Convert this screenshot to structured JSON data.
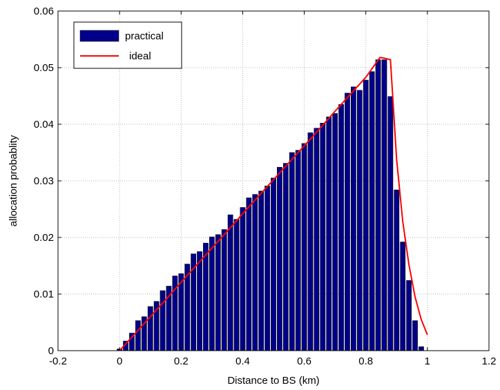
{
  "chart_data": {
    "type": "bar",
    "xlabel": "Distance to BS (km)",
    "ylabel": "allocation probablity",
    "xlim": [
      -0.2,
      1.2
    ],
    "ylim": [
      0,
      0.06
    ],
    "xticks": [
      "-0.2",
      "0",
      "0.2",
      "0.4",
      "0.6",
      "0.8",
      "1",
      "1.2"
    ],
    "yticks": [
      "0",
      "0.01",
      "0.02",
      "0.03",
      "0.04",
      "0.05",
      "0.06"
    ],
    "grid": true,
    "legend": {
      "placement": "top-left",
      "entries": [
        "practical",
        "ideal"
      ]
    },
    "colors": {
      "bar": "#00008b",
      "bar_edge": "#000000",
      "line": "#ff0000",
      "grid": "#b3b3b3"
    },
    "series": [
      {
        "name": "practical",
        "type": "bar",
        "x": [
          0.0,
          0.02,
          0.04,
          0.06,
          0.08,
          0.1,
          0.12,
          0.14,
          0.16,
          0.18,
          0.2,
          0.22,
          0.24,
          0.26,
          0.28,
          0.3,
          0.32,
          0.34,
          0.36,
          0.38,
          0.4,
          0.42,
          0.44,
          0.46,
          0.48,
          0.5,
          0.52,
          0.54,
          0.56,
          0.58,
          0.6,
          0.62,
          0.64,
          0.66,
          0.68,
          0.7,
          0.72,
          0.74,
          0.76,
          0.78,
          0.8,
          0.82,
          0.84,
          0.86,
          0.88,
          0.9,
          0.92,
          0.94,
          0.96,
          0.98,
          1.0
        ],
        "values": [
          0.0003,
          0.0017,
          0.0031,
          0.0053,
          0.006,
          0.0078,
          0.0087,
          0.0106,
          0.0114,
          0.0132,
          0.0136,
          0.0153,
          0.0171,
          0.0175,
          0.019,
          0.0201,
          0.0205,
          0.0214,
          0.024,
          0.0232,
          0.0253,
          0.027,
          0.0276,
          0.0282,
          0.0291,
          0.0305,
          0.0324,
          0.0331,
          0.035,
          0.0354,
          0.0366,
          0.0385,
          0.0393,
          0.0402,
          0.0413,
          0.0419,
          0.0435,
          0.0455,
          0.0466,
          0.046,
          0.0478,
          0.0493,
          0.0514,
          0.0514,
          0.0449,
          0.0284,
          0.0192,
          0.0124,
          0.0053,
          0.0007,
          0.0
        ]
      },
      {
        "name": "ideal",
        "type": "line",
        "x": [
          0.0,
          0.05,
          0.1,
          0.15,
          0.2,
          0.25,
          0.3,
          0.35,
          0.4,
          0.45,
          0.5,
          0.55,
          0.6,
          0.65,
          0.7,
          0.75,
          0.8,
          0.846,
          0.866,
          0.88,
          0.9,
          0.92,
          0.94,
          0.96,
          0.98,
          1.0
        ],
        "values": [
          0.0,
          0.003,
          0.006,
          0.009,
          0.0121,
          0.0151,
          0.0181,
          0.0211,
          0.0242,
          0.0272,
          0.0302,
          0.0332,
          0.0362,
          0.0392,
          0.0423,
          0.0453,
          0.0483,
          0.0518,
          0.0516,
          0.0514,
          0.0338,
          0.0228,
          0.0152,
          0.0095,
          0.0055,
          0.0028
        ]
      }
    ]
  }
}
